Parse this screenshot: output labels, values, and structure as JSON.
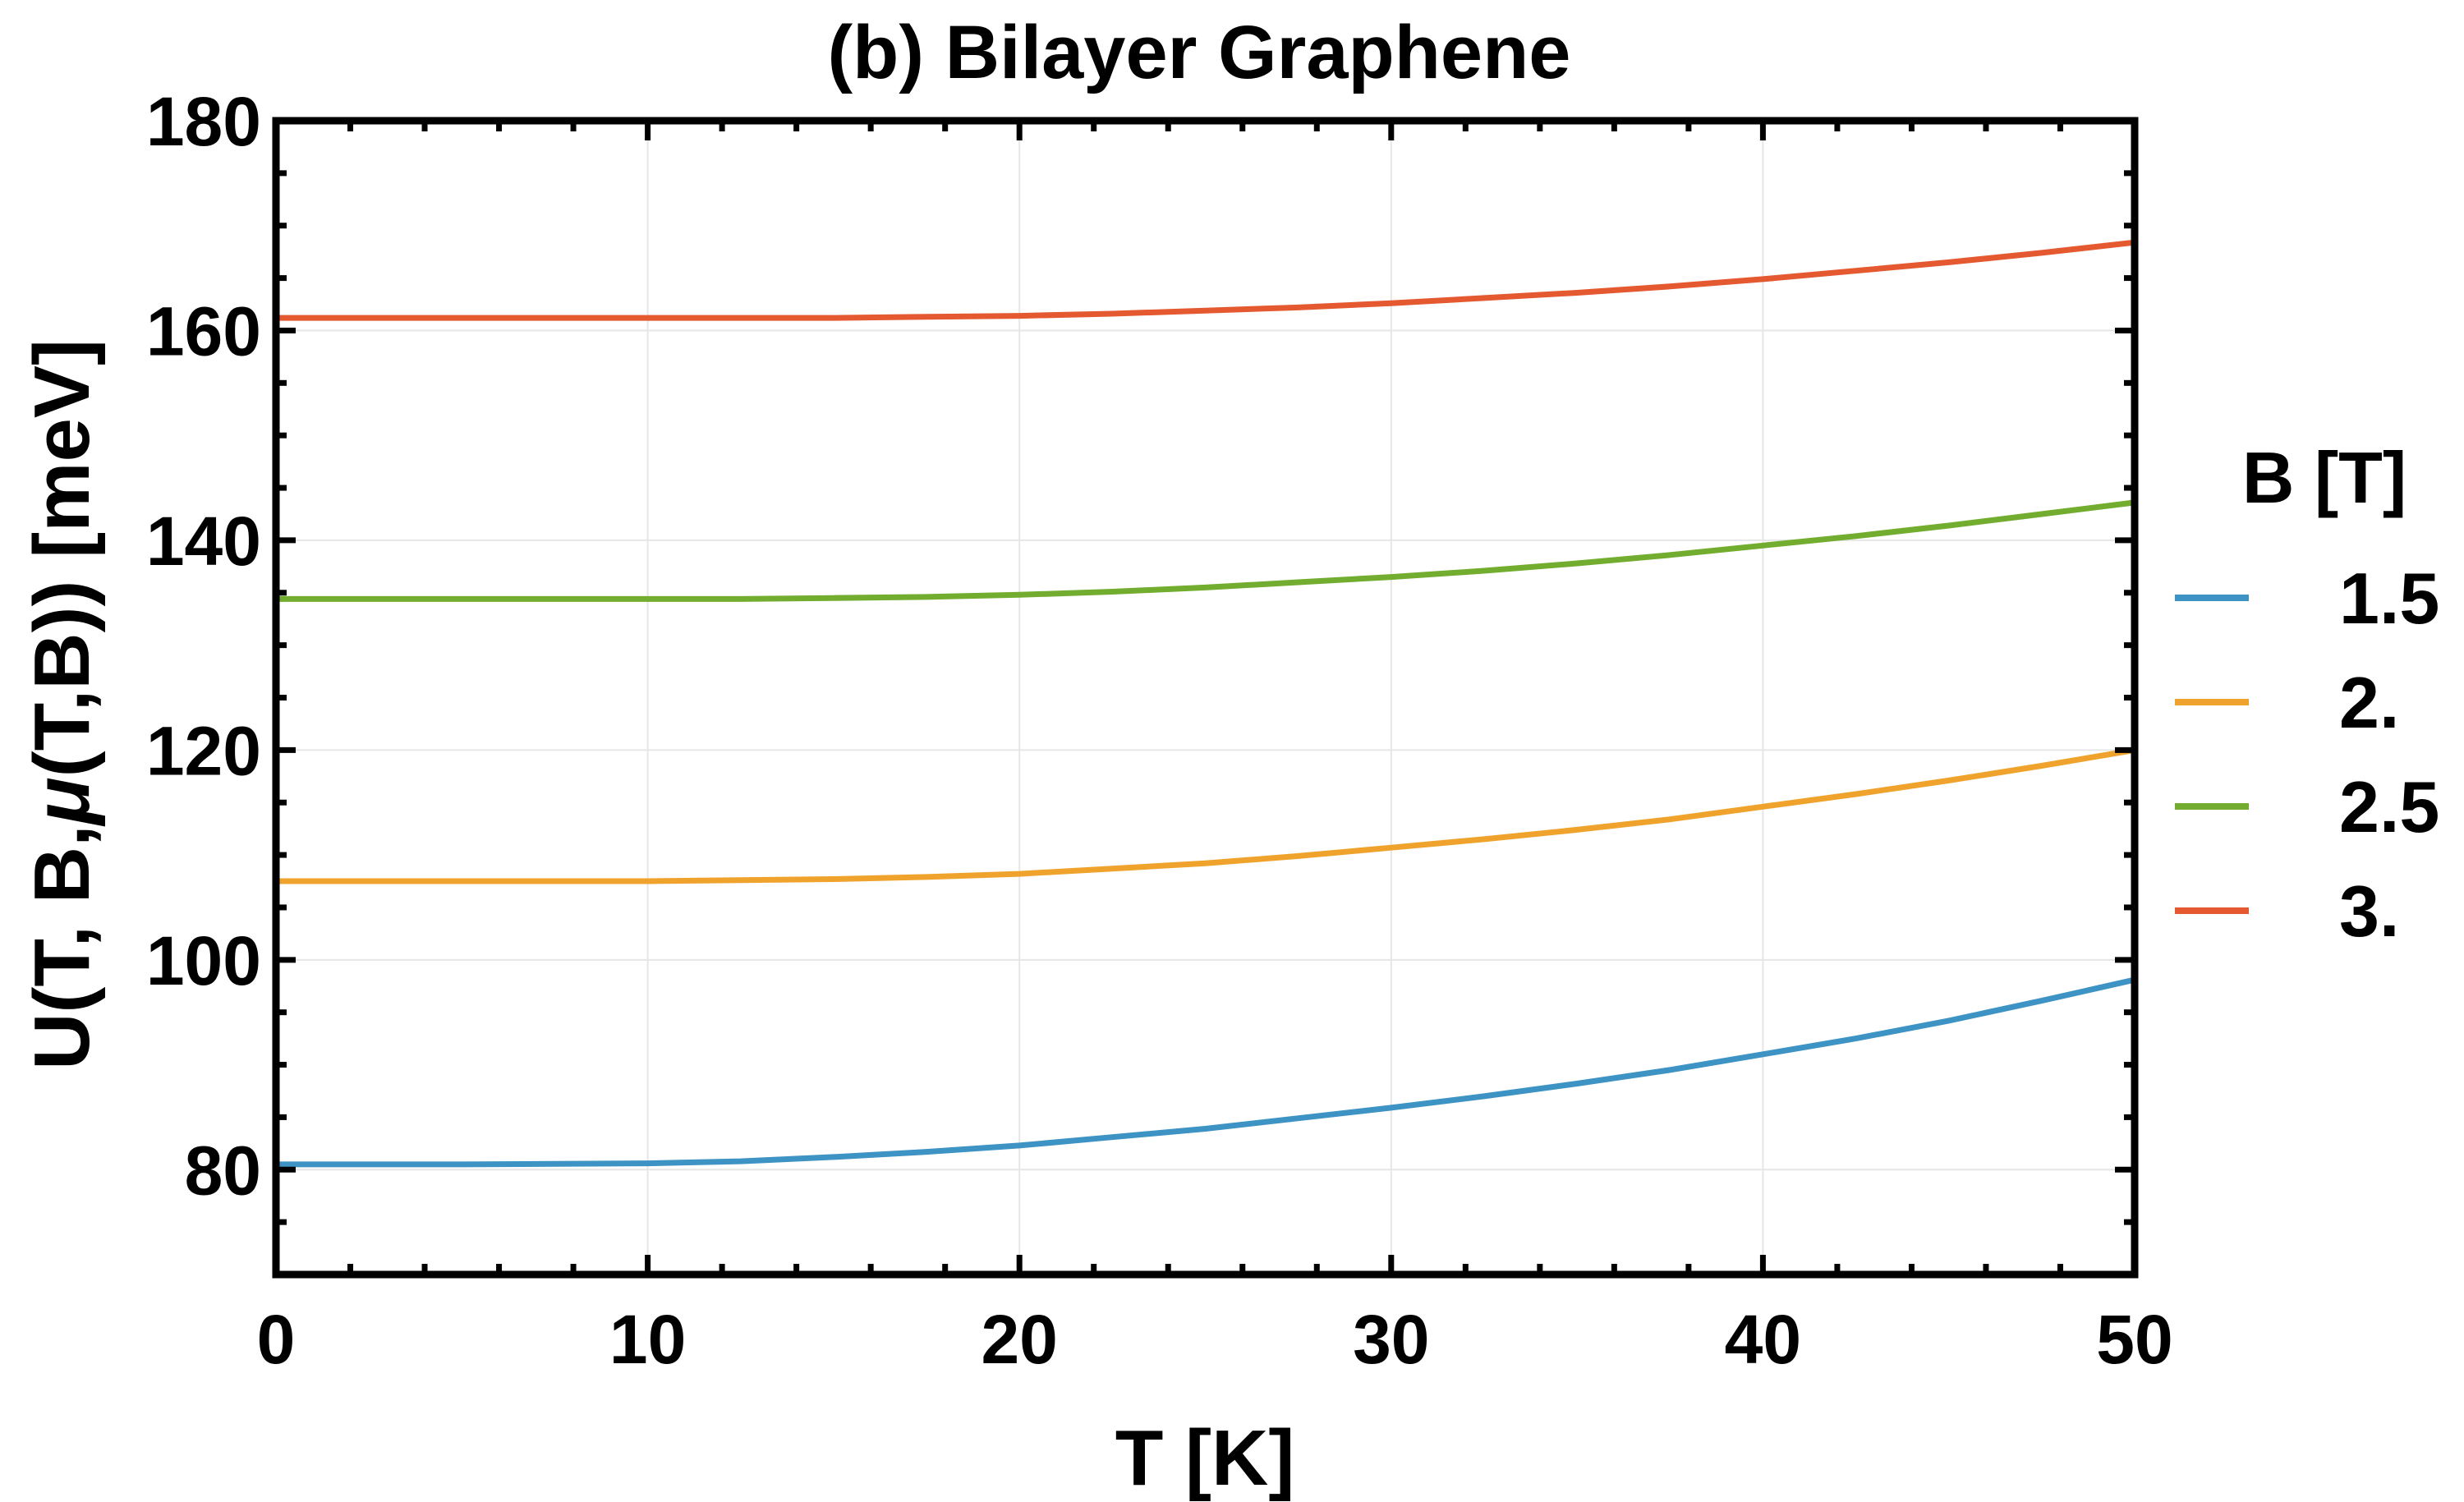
{
  "chart_data": {
    "type": "line",
    "title": "(b) Bilayer Graphene",
    "xlabel": "T [K]",
    "ylabel_parts": {
      "prefix": "U(T, B,",
      "mu": "μ",
      "suffix": "(T,B)) [meV]"
    },
    "xlim": [
      0,
      50
    ],
    "ylim": [
      70,
      180
    ],
    "x_ticks": [
      0,
      10,
      20,
      30,
      40,
      50
    ],
    "y_ticks": [
      80,
      100,
      120,
      140,
      160,
      180
    ],
    "x_tick_labels": [
      "0",
      "10",
      "20",
      "30",
      "40",
      "50"
    ],
    "y_tick_labels": [
      "80",
      "100",
      "120",
      "140",
      "160",
      "180"
    ],
    "x": [
      0,
      5,
      10,
      12.5,
      15,
      17.5,
      20,
      22.5,
      25,
      27.5,
      30,
      32.5,
      35,
      37.5,
      40,
      42.5,
      45,
      47.5,
      50
    ],
    "legend_title": "B [T]",
    "legend_position": "right",
    "series": [
      {
        "name": "1.5",
        "color": "#3d93c4",
        "values": [
          80.5,
          80.5,
          80.6,
          80.8,
          81.2,
          81.7,
          82.3,
          83.1,
          83.9,
          84.9,
          85.9,
          87.0,
          88.2,
          89.5,
          91.0,
          92.5,
          94.2,
          96.1,
          98.1
        ]
      },
      {
        "name": "2.",
        "color": "#f0a32c",
        "values": [
          107.5,
          107.5,
          107.5,
          107.6,
          107.7,
          107.9,
          108.2,
          108.7,
          109.2,
          109.9,
          110.7,
          111.5,
          112.4,
          113.4,
          114.6,
          115.8,
          117.1,
          118.5,
          120.0
        ]
      },
      {
        "name": "2.5",
        "color": "#72ad2f",
        "values": [
          134.4,
          134.4,
          134.4,
          134.4,
          134.5,
          134.6,
          134.8,
          135.1,
          135.5,
          136.0,
          136.5,
          137.1,
          137.8,
          138.6,
          139.5,
          140.4,
          141.4,
          142.5,
          143.6
        ]
      },
      {
        "name": "3.",
        "color": "#e45930",
        "values": [
          161.2,
          161.2,
          161.2,
          161.2,
          161.2,
          161.3,
          161.4,
          161.6,
          161.9,
          162.2,
          162.6,
          163.1,
          163.6,
          164.2,
          164.9,
          165.7,
          166.5,
          167.4,
          168.4
        ]
      }
    ],
    "grid": true
  }
}
